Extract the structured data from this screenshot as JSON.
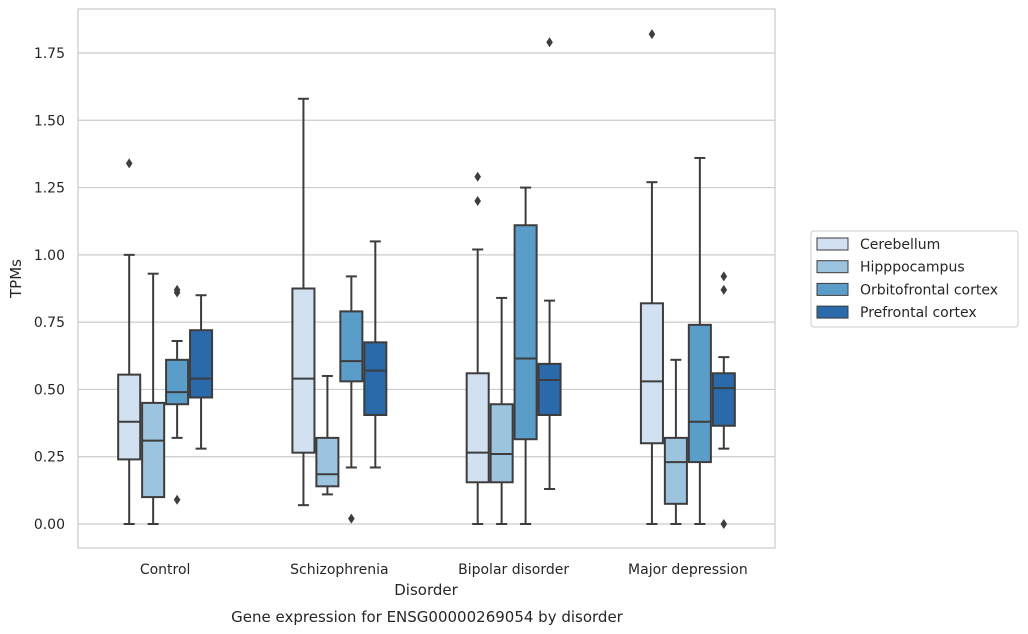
{
  "chart_data": {
    "type": "box",
    "xlabel": "Disorder",
    "ylabel": "TPMs",
    "caption": "Gene expression for ENSG00000269054 by disorder",
    "ylim": [
      -0.09,
      1.92
    ],
    "yticks": [
      0.0,
      0.25,
      0.5,
      0.75,
      1.0,
      1.25,
      1.5,
      1.75
    ],
    "ytick_labels": [
      "0.00",
      "0.25",
      "0.50",
      "0.75",
      "1.00",
      "1.25",
      "1.50",
      "1.75"
    ],
    "grid": true,
    "legend_position": "right",
    "categories": [
      "Control",
      "Schizophrenia",
      "Bipolar disorder",
      "Major depression"
    ],
    "series": [
      {
        "name": "Cerebellum",
        "color": "#d2e1f1",
        "boxes": [
          {
            "whisker_low": 0.0,
            "q1": 0.24,
            "median": 0.38,
            "q3": 0.555,
            "whisker_high": 1.0,
            "outliers": [
              1.34
            ]
          },
          {
            "whisker_low": 0.07,
            "q1": 0.265,
            "median": 0.54,
            "q3": 0.875,
            "whisker_high": 1.58,
            "outliers": []
          },
          {
            "whisker_low": 0.0,
            "q1": 0.155,
            "median": 0.265,
            "q3": 0.56,
            "whisker_high": 1.02,
            "outliers": [
              1.2,
              1.29
            ]
          },
          {
            "whisker_low": 0.0,
            "q1": 0.3,
            "median": 0.53,
            "q3": 0.82,
            "whisker_high": 1.27,
            "outliers": [
              1.82
            ]
          }
        ]
      },
      {
        "name": "Hipppocampus",
        "color": "#9cc4de",
        "boxes": [
          {
            "whisker_low": 0.0,
            "q1": 0.1,
            "median": 0.31,
            "q3": 0.45,
            "whisker_high": 0.93,
            "outliers": []
          },
          {
            "whisker_low": 0.11,
            "q1": 0.14,
            "median": 0.185,
            "q3": 0.32,
            "whisker_high": 0.55,
            "outliers": []
          },
          {
            "whisker_low": 0.0,
            "q1": 0.155,
            "median": 0.26,
            "q3": 0.445,
            "whisker_high": 0.84,
            "outliers": []
          },
          {
            "whisker_low": 0.0,
            "q1": 0.075,
            "median": 0.23,
            "q3": 0.32,
            "whisker_high": 0.61,
            "outliers": []
          }
        ]
      },
      {
        "name": "Orbitofrontal cortex",
        "color": "#5a9dc9",
        "boxes": [
          {
            "whisker_low": 0.32,
            "q1": 0.445,
            "median": 0.49,
            "q3": 0.61,
            "whisker_high": 0.68,
            "outliers": [
              0.09,
              0.86,
              0.87
            ]
          },
          {
            "whisker_low": 0.21,
            "q1": 0.53,
            "median": 0.605,
            "q3": 0.79,
            "whisker_high": 0.92,
            "outliers": [
              0.02
            ]
          },
          {
            "whisker_low": 0.0,
            "q1": 0.315,
            "median": 0.615,
            "q3": 1.11,
            "whisker_high": 1.25,
            "outliers": []
          },
          {
            "whisker_low": 0.0,
            "q1": 0.23,
            "median": 0.38,
            "q3": 0.74,
            "whisker_high": 1.36,
            "outliers": []
          }
        ]
      },
      {
        "name": "Prefrontal cortex",
        "color": "#2a6aab",
        "boxes": [
          {
            "whisker_low": 0.28,
            "q1": 0.47,
            "median": 0.54,
            "q3": 0.72,
            "whisker_high": 0.85,
            "outliers": []
          },
          {
            "whisker_low": 0.21,
            "q1": 0.405,
            "median": 0.57,
            "q3": 0.675,
            "whisker_high": 1.05,
            "outliers": []
          },
          {
            "whisker_low": 0.13,
            "q1": 0.405,
            "median": 0.535,
            "q3": 0.595,
            "whisker_high": 0.83,
            "outliers": [
              1.79
            ]
          },
          {
            "whisker_low": 0.28,
            "q1": 0.365,
            "median": 0.505,
            "q3": 0.56,
            "whisker_high": 0.62,
            "outliers": [
              0.0,
              0.87,
              0.92
            ]
          }
        ]
      }
    ]
  }
}
